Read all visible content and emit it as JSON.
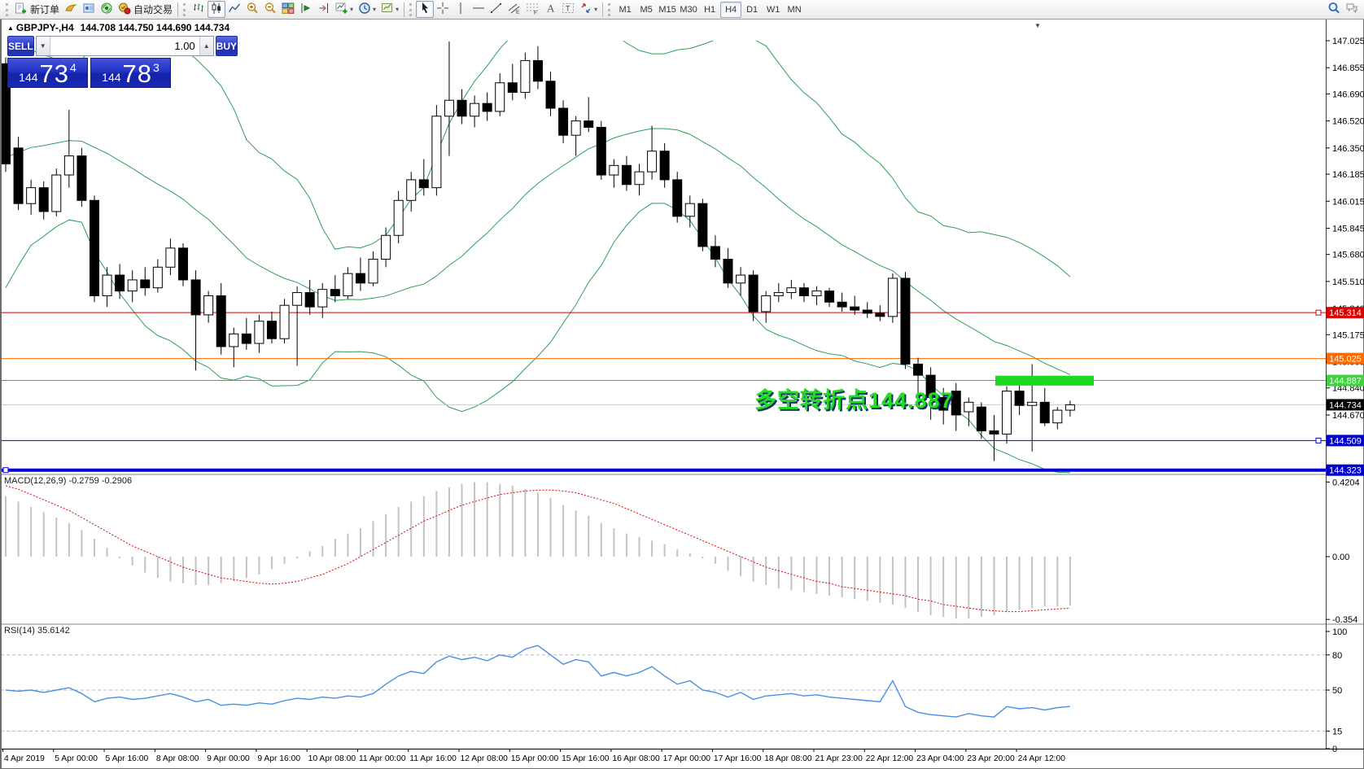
{
  "toolbar": {
    "groups": [
      {
        "name": "standard",
        "items": [
          {
            "icon": "new-order-icon",
            "name": "new-order",
            "label": "新订单"
          },
          {
            "icon": "profiles-icon",
            "name": "profiles"
          },
          {
            "icon": "market-watch-icon",
            "name": "market-watch"
          },
          {
            "icon": "signal-icon",
            "name": "signals"
          },
          {
            "icon": "autotrading-icon",
            "name": "autotrading",
            "label": "自动交易"
          }
        ]
      },
      {
        "name": "chart-controls",
        "items": [
          {
            "icon": "bar-chart-icon",
            "name": "bar-chart"
          },
          {
            "icon": "candlestick-icon",
            "name": "candlestick-chart",
            "active": true
          },
          {
            "icon": "line-chart-icon",
            "name": "line-chart"
          },
          {
            "icon": "zoom-in-icon",
            "name": "zoom-in"
          },
          {
            "icon": "zoom-out-icon",
            "name": "zoom-out"
          },
          {
            "icon": "tile-windows-icon",
            "name": "tile-windows"
          },
          {
            "icon": "auto-scroll-icon",
            "name": "auto-scroll"
          },
          {
            "icon": "chart-shift-icon",
            "name": "chart-shift"
          },
          {
            "icon": "indicators-icon",
            "name": "indicators",
            "dropdown": true
          },
          {
            "icon": "periods-icon",
            "name": "periods",
            "dropdown": true
          },
          {
            "icon": "templates-icon",
            "name": "templates",
            "dropdown": true
          }
        ]
      },
      {
        "name": "drawing-tools",
        "items": [
          {
            "icon": "cursor-icon",
            "name": "cursor",
            "active": true
          },
          {
            "icon": "crosshair-icon",
            "name": "crosshair"
          },
          {
            "icon": "vline-icon",
            "name": "vertical-line"
          },
          {
            "icon": "hline-icon",
            "name": "horizontal-line"
          },
          {
            "icon": "trendline-icon",
            "name": "trendline"
          },
          {
            "icon": "channel-icon",
            "name": "equidistant-channel"
          },
          {
            "icon": "fibonacci-icon",
            "name": "fibonacci-retracement"
          },
          {
            "icon": "text-icon",
            "name": "text"
          },
          {
            "icon": "label-icon",
            "name": "text-label"
          },
          {
            "icon": "arrows-icon",
            "name": "arrow-objects",
            "dropdown": true
          }
        ]
      }
    ],
    "timeframes": {
      "options": [
        "M1",
        "M5",
        "M15",
        "M30",
        "H1",
        "H4",
        "D1",
        "W1",
        "MN"
      ],
      "active": "H4"
    },
    "right_items": [
      {
        "icon": "search-icon",
        "name": "search"
      },
      {
        "icon": "chat-icon",
        "name": "community-chat"
      }
    ]
  },
  "chart": {
    "symbol_title": "GBPJPY-,H4",
    "ohlc_text": "144.708 144.750 144.690 144.734",
    "collapse_arrow": "▲",
    "shift_marker": "▼",
    "trade_panel": {
      "sell_label": "SELL",
      "buy_label": "BUY",
      "volume": "1.00",
      "sell_price": {
        "prefix": "144",
        "big": "73",
        "pip": "4"
      },
      "buy_price": {
        "prefix": "144",
        "big": "78",
        "pip": "3"
      }
    },
    "annotation": {
      "text": "多空转折点144.887",
      "color": "#22dd22"
    }
  },
  "chart_data": {
    "type": "candlestick",
    "symbol": "GBPJPY-",
    "timeframe": "H4",
    "ohlc_current": {
      "open": 144.708,
      "high": 144.75,
      "low": 144.69,
      "close": 144.734
    },
    "y_axis": {
      "min": 144.323,
      "max": 147.025,
      "ticks": [
        147.025,
        146.855,
        146.69,
        146.52,
        146.35,
        146.185,
        146.015,
        145.845,
        145.68,
        145.51,
        145.34,
        145.175,
        145.005,
        144.84,
        144.67,
        144.5,
        144.335
      ]
    },
    "x_labels": [
      "4 Apr 2019",
      "5 Apr 00:00",
      "5 Apr 16:00",
      "8 Apr 08:00",
      "9 Apr 00:00",
      "9 Apr 16:00",
      "10 Apr 08:00",
      "11 Apr 00:00",
      "11 Apr 16:00",
      "12 Apr 08:00",
      "15 Apr 00:00",
      "15 Apr 16:00",
      "16 Apr 08:00",
      "17 Apr 00:00",
      "17 Apr 16:00",
      "18 Apr 08:00",
      "21 Apr 23:00",
      "22 Apr 12:00",
      "23 Apr 04:00",
      "23 Apr 20:00",
      "24 Apr 12:00"
    ],
    "candles": [
      [
        146.88,
        146.92,
        146.2,
        146.25
      ],
      [
        146.35,
        146.42,
        145.96,
        146.0
      ],
      [
        146.0,
        146.15,
        145.93,
        146.1
      ],
      [
        146.1,
        146.14,
        145.9,
        145.95
      ],
      [
        145.95,
        146.22,
        145.92,
        146.18
      ],
      [
        146.18,
        146.59,
        146.1,
        146.3
      ],
      [
        146.3,
        146.35,
        145.98,
        146.02
      ],
      [
        146.02,
        146.05,
        145.38,
        145.42
      ],
      [
        145.42,
        145.6,
        145.35,
        145.55
      ],
      [
        145.55,
        145.62,
        145.4,
        145.45
      ],
      [
        145.45,
        145.58,
        145.38,
        145.52
      ],
      [
        145.52,
        145.6,
        145.42,
        145.47
      ],
      [
        145.47,
        145.65,
        145.44,
        145.6
      ],
      [
        145.6,
        145.78,
        145.55,
        145.72
      ],
      [
        145.72,
        145.75,
        145.48,
        145.52
      ],
      [
        145.52,
        145.58,
        144.95,
        145.3
      ],
      [
        145.3,
        145.45,
        145.25,
        145.42
      ],
      [
        145.42,
        145.5,
        145.05,
        145.1
      ],
      [
        145.1,
        145.22,
        144.97,
        145.18
      ],
      [
        145.18,
        145.28,
        145.08,
        145.12
      ],
      [
        145.12,
        145.3,
        145.06,
        145.26
      ],
      [
        145.26,
        145.32,
        145.12,
        145.15
      ],
      [
        145.15,
        145.4,
        145.12,
        145.36
      ],
      [
        145.36,
        145.48,
        144.98,
        145.44
      ],
      [
        145.44,
        145.52,
        145.3,
        145.35
      ],
      [
        145.35,
        145.5,
        145.28,
        145.46
      ],
      [
        145.46,
        145.55,
        145.38,
        145.42
      ],
      [
        145.42,
        145.6,
        145.4,
        145.56
      ],
      [
        145.56,
        145.66,
        145.45,
        145.5
      ],
      [
        145.5,
        145.7,
        145.48,
        145.65
      ],
      [
        145.65,
        145.85,
        145.6,
        145.8
      ],
      [
        145.8,
        146.08,
        145.75,
        146.02
      ],
      [
        146.02,
        146.2,
        145.95,
        146.15
      ],
      [
        146.15,
        146.28,
        146.05,
        146.1
      ],
      [
        146.1,
        146.62,
        146.05,
        146.55
      ],
      [
        146.55,
        147.02,
        146.3,
        146.65
      ],
      [
        146.65,
        146.72,
        146.5,
        146.55
      ],
      [
        146.55,
        146.68,
        146.48,
        146.63
      ],
      [
        146.63,
        146.7,
        146.52,
        146.58
      ],
      [
        146.58,
        146.82,
        146.55,
        146.76
      ],
      [
        146.76,
        146.88,
        146.65,
        146.7
      ],
      [
        146.7,
        146.95,
        146.66,
        146.9
      ],
      [
        146.9,
        146.99,
        146.72,
        146.77
      ],
      [
        146.77,
        146.83,
        146.55,
        146.6
      ],
      [
        146.6,
        146.65,
        146.38,
        146.43
      ],
      [
        146.43,
        146.55,
        146.3,
        146.52
      ],
      [
        146.52,
        146.67,
        146.45,
        146.48
      ],
      [
        146.48,
        146.52,
        146.15,
        146.18
      ],
      [
        146.18,
        146.28,
        146.1,
        146.24
      ],
      [
        146.24,
        146.3,
        146.08,
        146.12
      ],
      [
        146.12,
        146.25,
        146.05,
        146.2
      ],
      [
        146.2,
        146.49,
        146.15,
        146.33
      ],
      [
        146.33,
        146.38,
        146.1,
        146.15
      ],
      [
        146.15,
        146.2,
        145.88,
        145.92
      ],
      [
        145.92,
        146.05,
        145.85,
        146.0
      ],
      [
        146.0,
        146.03,
        145.7,
        145.73
      ],
      [
        145.73,
        145.8,
        145.6,
        145.65
      ],
      [
        145.65,
        145.72,
        145.47,
        145.5
      ],
      [
        145.5,
        145.6,
        145.42,
        145.55
      ],
      [
        145.55,
        145.58,
        145.26,
        145.32
      ],
      [
        145.32,
        145.45,
        145.25,
        145.42
      ],
      [
        145.42,
        145.5,
        145.38,
        145.44
      ],
      [
        145.44,
        145.52,
        145.4,
        145.47
      ],
      [
        145.47,
        145.5,
        145.38,
        145.42
      ],
      [
        145.42,
        145.48,
        145.36,
        145.45
      ],
      [
        145.45,
        145.47,
        145.35,
        145.38
      ],
      [
        145.38,
        145.44,
        145.32,
        145.35
      ],
      [
        145.35,
        145.42,
        145.3,
        145.33
      ],
      [
        145.33,
        145.38,
        145.28,
        145.31
      ],
      [
        145.31,
        145.36,
        145.26,
        145.29
      ],
      [
        145.29,
        145.56,
        145.25,
        145.53
      ],
      [
        145.53,
        145.57,
        144.96,
        144.99
      ],
      [
        144.99,
        145.03,
        144.73,
        144.92
      ],
      [
        144.92,
        144.97,
        144.64,
        144.78
      ],
      [
        144.78,
        144.84,
        144.61,
        144.7
      ],
      [
        144.82,
        144.87,
        144.57,
        144.67
      ],
      [
        144.69,
        144.78,
        144.6,
        144.75
      ],
      [
        144.72,
        144.75,
        144.52,
        144.57
      ],
      [
        144.57,
        144.67,
        144.38,
        144.55
      ],
      [
        144.55,
        144.85,
        144.49,
        144.82
      ],
      [
        144.82,
        144.87,
        144.67,
        144.73
      ],
      [
        144.73,
        144.99,
        144.44,
        144.75
      ],
      [
        144.75,
        144.84,
        144.6,
        144.62
      ],
      [
        144.62,
        144.72,
        144.58,
        144.7
      ],
      [
        144.7,
        144.76,
        144.66,
        144.734
      ]
    ],
    "bollinger": {
      "period": 20,
      "deviation": 2,
      "warmup_closes": [
        145.2,
        145.35,
        145.5,
        145.7,
        145.85,
        146.0,
        146.1,
        146.2,
        146.3,
        146.4,
        146.45,
        146.5,
        146.55,
        146.6,
        146.55,
        146.65,
        146.6,
        146.7,
        146.75,
        146.8
      ],
      "color": "#2e9e55"
    },
    "price_lines": [
      {
        "price": 145.314,
        "label": "145.314",
        "color": "#d40000",
        "bg": "#dd0000",
        "width": 1,
        "marker": "right"
      },
      {
        "price": 145.025,
        "label": "145.025",
        "color": "#ff6a00",
        "bg": "#ff6a00",
        "width": 1,
        "marker": "none"
      },
      {
        "price": 144.887,
        "label": "144.887",
        "color": "#2fbe2f",
        "bg": "#3dd43d",
        "width": 1,
        "marker": "none"
      },
      {
        "price": 144.734,
        "label": "144.734",
        "color": "#c8c8c8",
        "bg": "#000000",
        "width": 1,
        "marker": "none"
      },
      {
        "price": 144.509,
        "label": "144.509",
        "color": "#0000d0",
        "bg": "#0000cc",
        "width": 1,
        "marker": "right"
      },
      {
        "price": 144.323,
        "label": "144.323",
        "color": "#0000d0",
        "bg": "#0000cc",
        "width": 4,
        "marker": "left"
      }
    ],
    "highlight_box": {
      "x": 1222,
      "width": 121,
      "price_top": 144.917,
      "price_bottom": 144.855,
      "color": "#1fd91f"
    },
    "macd": {
      "title": "MACD(12,26,9) -0.2759 -0.2906",
      "params": [
        12,
        26,
        9
      ],
      "value": -0.2759,
      "signal_value": -0.2906,
      "scale": {
        "max": 0.4204,
        "mid": 0.0,
        "min": -0.354
      },
      "histogram": [
        0.34,
        0.31,
        0.28,
        0.25,
        0.22,
        0.19,
        0.15,
        0.1,
        0.05,
        -0.01,
        -0.05,
        -0.09,
        -0.12,
        -0.14,
        -0.15,
        -0.16,
        -0.16,
        -0.15,
        -0.14,
        -0.12,
        -0.1,
        -0.07,
        -0.04,
        -0.01,
        0.03,
        0.06,
        0.1,
        0.13,
        0.16,
        0.2,
        0.24,
        0.28,
        0.31,
        0.34,
        0.37,
        0.39,
        0.41,
        0.42,
        0.42,
        0.41,
        0.4,
        0.38,
        0.36,
        0.33,
        0.29,
        0.26,
        0.23,
        0.19,
        0.16,
        0.13,
        0.11,
        0.09,
        0.07,
        0.04,
        0.02,
        -0.01,
        -0.04,
        -0.08,
        -0.11,
        -0.14,
        -0.16,
        -0.18,
        -0.19,
        -0.2,
        -0.21,
        -0.22,
        -0.23,
        -0.24,
        -0.25,
        -0.26,
        -0.27,
        -0.29,
        -0.31,
        -0.33,
        -0.34,
        -0.35,
        -0.35,
        -0.34,
        -0.33,
        -0.31,
        -0.3,
        -0.29,
        -0.28,
        -0.28,
        -0.276
      ],
      "signal": [
        0.4,
        0.38,
        0.35,
        0.32,
        0.29,
        0.26,
        0.22,
        0.18,
        0.14,
        0.1,
        0.06,
        0.03,
        0.0,
        -0.03,
        -0.06,
        -0.08,
        -0.1,
        -0.12,
        -0.13,
        -0.14,
        -0.15,
        -0.155,
        -0.15,
        -0.14,
        -0.12,
        -0.1,
        -0.07,
        -0.04,
        0.0,
        0.04,
        0.08,
        0.12,
        0.16,
        0.2,
        0.23,
        0.26,
        0.29,
        0.31,
        0.33,
        0.35,
        0.36,
        0.37,
        0.375,
        0.375,
        0.37,
        0.36,
        0.34,
        0.32,
        0.3,
        0.27,
        0.24,
        0.21,
        0.18,
        0.15,
        0.12,
        0.09,
        0.06,
        0.03,
        0.0,
        -0.03,
        -0.06,
        -0.08,
        -0.1,
        -0.12,
        -0.14,
        -0.15,
        -0.17,
        -0.18,
        -0.19,
        -0.2,
        -0.21,
        -0.22,
        -0.24,
        -0.25,
        -0.27,
        -0.28,
        -0.29,
        -0.3,
        -0.305,
        -0.31,
        -0.31,
        -0.305,
        -0.3,
        -0.295,
        -0.291
      ],
      "bar_color": "#c2c2c2",
      "signal_color": "#e00000"
    },
    "rsi": {
      "title": "RSI(14) 35.6142",
      "period": 14,
      "value": 35.6142,
      "levels": [
        100,
        80,
        50,
        15,
        0
      ],
      "series": [
        50,
        49,
        50,
        48,
        50,
        52,
        47,
        40,
        43,
        44,
        42,
        43,
        45,
        47,
        44,
        40,
        42,
        37,
        38,
        37,
        39,
        38,
        41,
        43,
        42,
        44,
        43,
        45,
        44,
        47,
        55,
        62,
        66,
        64,
        74,
        79,
        76,
        78,
        75,
        80,
        78,
        85,
        88,
        80,
        72,
        76,
        74,
        62,
        65,
        62,
        65,
        70,
        62,
        55,
        58,
        50,
        48,
        44,
        48,
        42,
        45,
        46,
        47,
        45,
        46,
        44,
        43,
        42,
        41,
        40,
        58,
        36,
        31,
        29,
        28,
        27,
        30,
        28,
        27,
        36,
        34,
        35,
        33,
        35,
        36
      ],
      "line_color": "#4a8fe2"
    }
  }
}
